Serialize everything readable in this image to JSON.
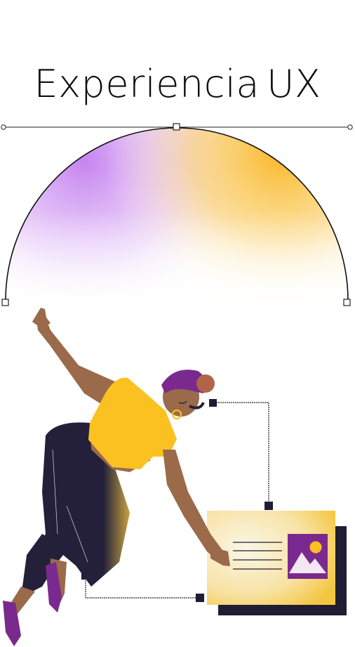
{
  "heading": {
    "word1": "Experiencia",
    "word2": "UX"
  },
  "colors": {
    "purple": "#c684f0",
    "orange": "#f9b82a",
    "headband": "#7a2a8e",
    "shirt": "#fbc121",
    "pants": "#24203a",
    "skin": "#9a6a4a",
    "card": "#fbf3d8",
    "ink": "#1f1d33"
  },
  "icons": [
    "bezier-anchor-icon",
    "handle-point-icon",
    "image-placeholder-icon",
    "connector-node-icon",
    "text-lines-icon"
  ]
}
